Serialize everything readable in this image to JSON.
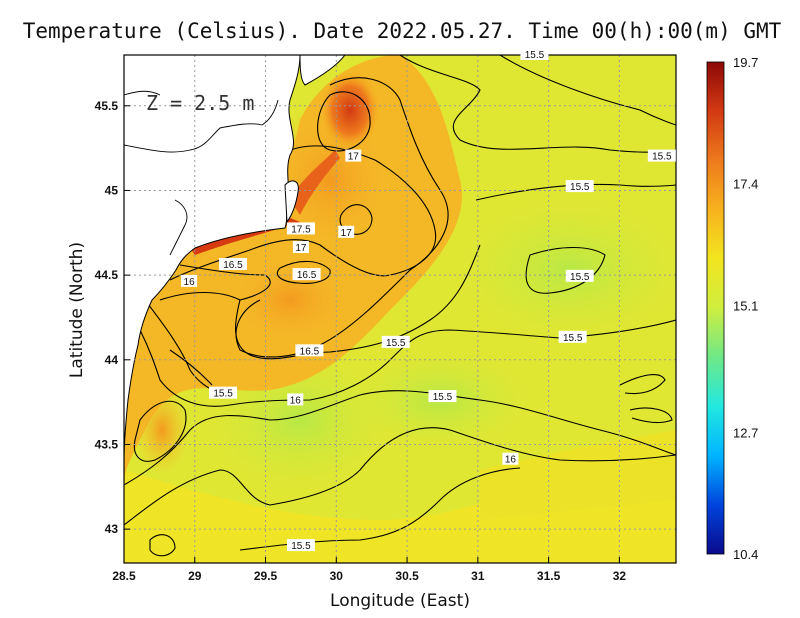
{
  "title": "Temperature (Celsius). Date 2022.05.27. Time 00(h):00(m) GMT",
  "chart_data": {
    "type": "heatmap",
    "title": "Temperature (Celsius). Date 2022.05.27. Time 00(h):00(m) GMT",
    "xlabel": "Longitude (East)",
    "ylabel": "Latitude (North)",
    "xlim": [
      28.5,
      32.4
    ],
    "ylim": [
      42.8,
      45.8
    ],
    "x_ticks": [
      28.5,
      29,
      29.5,
      30,
      30.5,
      31,
      31.5,
      32
    ],
    "y_ticks": [
      43,
      43.5,
      44,
      44.5,
      45,
      45.5
    ],
    "x_tick_labels": [
      "28.5",
      "29",
      "29.5",
      "30",
      "30.5",
      "31",
      "31.5",
      "32"
    ],
    "y_tick_labels": [
      "43",
      "43.5",
      "44",
      "44.5",
      "45",
      "45.5"
    ],
    "grid": true,
    "annotation": "Z = 2.5 m",
    "colorbar": {
      "min": 10.4,
      "max": 19.7,
      "tick_values": [
        19.7,
        17.4,
        15.1,
        12.7,
        10.4
      ],
      "tick_labels": [
        "19.7",
        "17.4",
        "15.1",
        "12.7",
        "10.4"
      ],
      "colormap": [
        "#0a0a8c",
        "#0044dd",
        "#00b4ff",
        "#22e8e0",
        "#6fe887",
        "#cfee40",
        "#f2e51f",
        "#f7b21e",
        "#ee7a1d",
        "#d23a12",
        "#8c0808"
      ]
    },
    "contour_labels": [
      {
        "text": "15.5",
        "lon": 31.4,
        "lat": 45.8
      },
      {
        "text": "15.5",
        "lon": 32.3,
        "lat": 45.2
      },
      {
        "text": "15.5",
        "lon": 31.72,
        "lat": 45.02
      },
      {
        "text": "17",
        "lon": 30.12,
        "lat": 45.2
      },
      {
        "text": "17.5",
        "lon": 29.75,
        "lat": 44.77
      },
      {
        "text": "17",
        "lon": 30.07,
        "lat": 44.75
      },
      {
        "text": "17",
        "lon": 29.75,
        "lat": 44.66
      },
      {
        "text": "16.5",
        "lon": 29.27,
        "lat": 44.56
      },
      {
        "text": "16.5",
        "lon": 29.79,
        "lat": 44.5
      },
      {
        "text": "16",
        "lon": 28.96,
        "lat": 44.46
      },
      {
        "text": "15.5",
        "lon": 31.72,
        "lat": 44.49
      },
      {
        "text": "15.5",
        "lon": 31.67,
        "lat": 44.13
      },
      {
        "text": "15.5",
        "lon": 30.42,
        "lat": 44.1
      },
      {
        "text": "16.5",
        "lon": 29.81,
        "lat": 44.05
      },
      {
        "text": "15.5",
        "lon": 29.2,
        "lat": 43.8
      },
      {
        "text": "16",
        "lon": 29.71,
        "lat": 43.76
      },
      {
        "text": "15.5",
        "lon": 30.75,
        "lat": 43.78
      },
      {
        "text": "16",
        "lon": 31.23,
        "lat": 43.41
      },
      {
        "text": "15.5",
        "lon": 29.75,
        "lat": 42.9
      }
    ]
  }
}
